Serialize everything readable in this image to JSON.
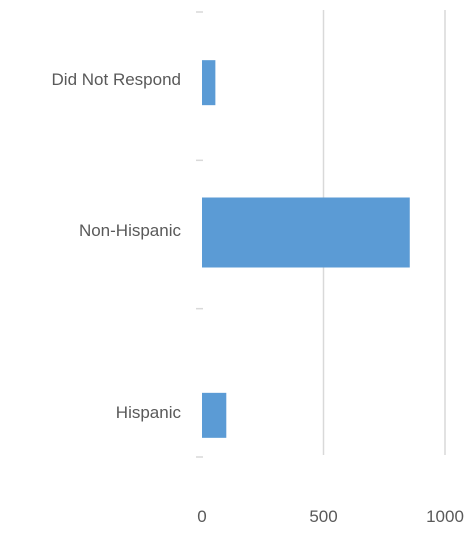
{
  "chart_data": {
    "type": "bar",
    "orientation": "horizontal",
    "title": "",
    "xlabel": "",
    "ylabel": "",
    "categories": [
      "Did Not Respond",
      "Non-Hispanic",
      "Hispanic"
    ],
    "values": [
      55,
      855,
      100
    ],
    "xlim": [
      0,
      1000
    ],
    "x_ticks": [
      "0",
      "500",
      "1000"
    ],
    "grid": "vertical gridlines at 500 and 1000",
    "legend": "none",
    "bar_color": "#5b9bd5",
    "gridline_color": "#d9d9d9"
  }
}
